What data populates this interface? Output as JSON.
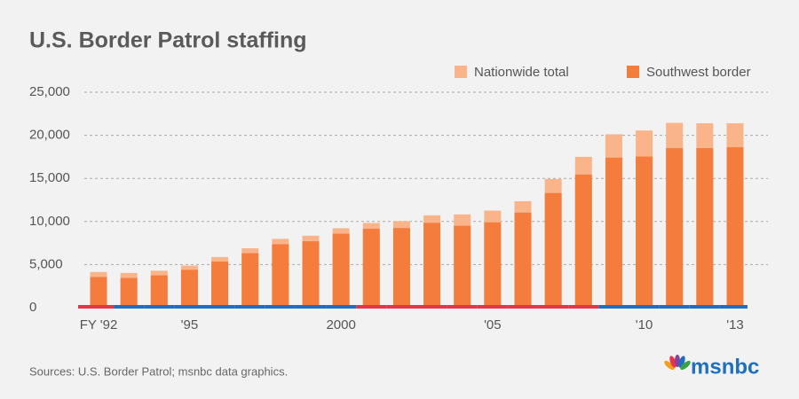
{
  "chart_data": {
    "type": "bar",
    "title": "U.S. Border Patrol staffing",
    "categories": [
      "FY '92",
      null,
      null,
      "'95",
      null,
      null,
      null,
      null,
      "2000",
      null,
      null,
      null,
      null,
      "'05",
      null,
      null,
      null,
      null,
      "'10",
      null,
      null,
      "'13"
    ],
    "series": [
      {
        "name": "Nationwide total",
        "color": "#f9b48a",
        "values": [
          4139,
          4029,
          4287,
          4881,
          5878,
          6895,
          7982,
          8351,
          9212,
          9821,
          10045,
          10717,
          10819,
          11264,
          12349,
          14923,
          17499,
          20119,
          20558,
          21444,
          21394,
          21391
        ]
      },
      {
        "name": "Southwest border",
        "color": "#f47c3c",
        "values": [
          3555,
          3444,
          3747,
          4388,
          5342,
          6315,
          7357,
          7706,
          8580,
          9147,
          9239,
          9840,
          9506,
          9891,
          11032,
          13297,
          15442,
          17408,
          17535,
          18506,
          18516,
          18611
        ]
      }
    ],
    "ylim": [
      0,
      25000
    ],
    "yticks": [
      0,
      {
        "value": 5000,
        "label": "5,000"
      },
      {
        "value": 10000,
        "label": "10,000"
      },
      {
        "value": 15000,
        "label": "15,000"
      },
      {
        "value": 20000,
        "label": "20,000"
      },
      {
        "value": 25000,
        "label": "25,000"
      }
    ],
    "grid": true,
    "legend": "top-right",
    "baseline_colors": [
      "#e8344a",
      "#1f6fc1",
      "#1f6fc1",
      "#1f6fc1",
      "#1f6fc1",
      "#1f6fc1",
      "#1f6fc1",
      "#1f6fc1",
      "#1f6fc1",
      "#e8344a",
      "#e8344a",
      "#e8344a",
      "#e8344a",
      "#e8344a",
      "#e8344a",
      "#e8344a",
      "#e8344a",
      "#1f6fc1",
      "#1f6fc1",
      "#1f6fc1",
      "#1f6fc1",
      "#1f6fc1"
    ],
    "source": "Sources: U.S. Border Patrol; msnbc data graphics.",
    "logo": "msnbc"
  }
}
